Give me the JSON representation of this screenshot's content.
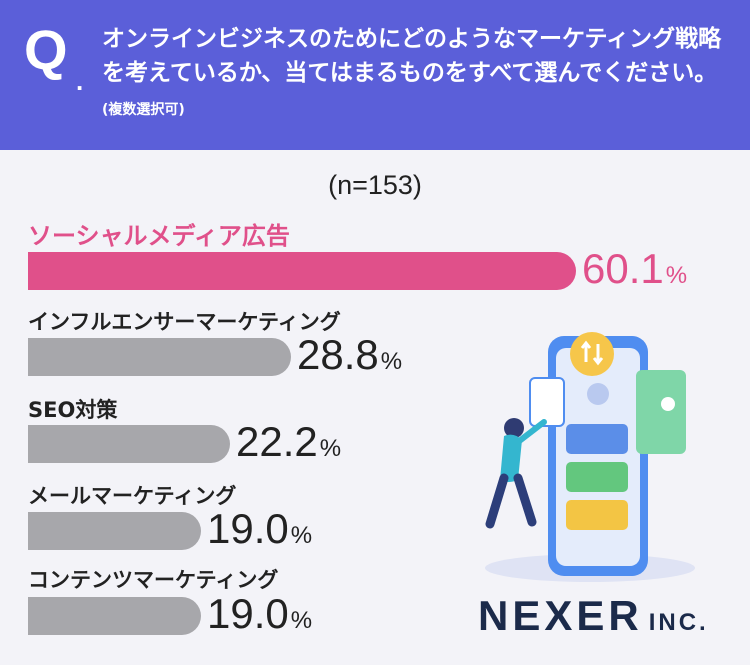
{
  "header": {
    "q_mark": "Q",
    "q_dot": ".",
    "question": "オンラインビジネスのためにどのようなマーケティング戦略を考えているか、当てはまるものをすべて選んでください。",
    "note": "(複数選択可)"
  },
  "sample_size": "(n=153)",
  "chart_data": {
    "type": "bar",
    "orientation": "horizontal",
    "categories": [
      "ソーシャルメディア広告",
      "インフルエンサーマーケティング",
      "SEO対策",
      "メールマーケティング",
      "コンテンツマーケティング"
    ],
    "values": [
      60.1,
      28.8,
      22.2,
      19.0,
      19.0
    ],
    "value_labels": [
      "60.1",
      "28.8",
      "22.2",
      "19.0",
      "19.0"
    ],
    "unit": "%",
    "highlight_index": 0,
    "highlight_color": "#e0508a",
    "bar_color": "#a7a7ab"
  },
  "logo": {
    "name": "NEXER",
    "suffix": "INC."
  },
  "colors": {
    "header_bg": "#5b5fd9",
    "background": "#f3f3f8",
    "logo": "#1b2a4a"
  }
}
